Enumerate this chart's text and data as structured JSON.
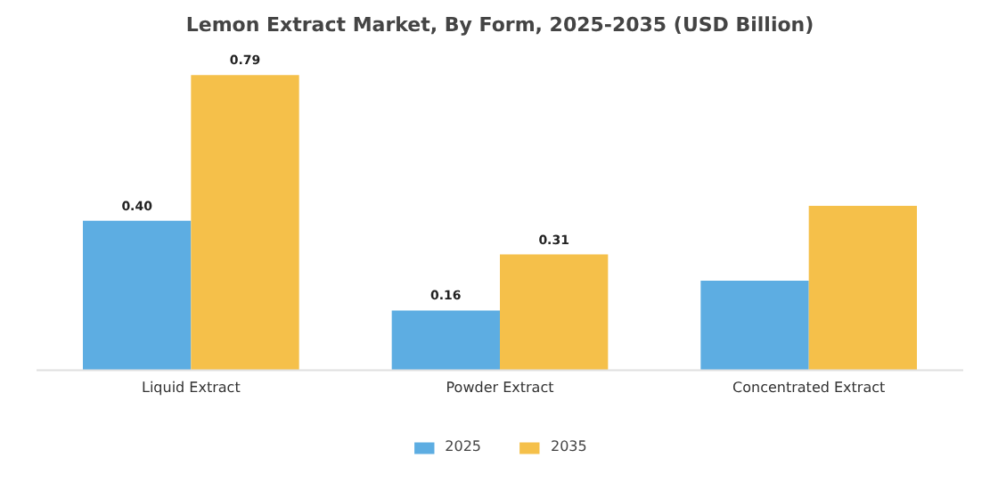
{
  "chart_data": {
    "type": "bar",
    "title": "Lemon Extract Market, By Form, 2025-2035 (USD Billion)",
    "categories": [
      "Liquid Extract",
      "Powder Extract",
      "Concentrated Extract"
    ],
    "series": [
      {
        "name": "2025",
        "color": "#5dade2",
        "values": [
          0.4,
          0.16,
          0.24
        ],
        "value_labels": [
          "0.40",
          "0.16",
          null
        ]
      },
      {
        "name": "2035",
        "color": "#f5c04a",
        "values": [
          0.79,
          0.31,
          0.44
        ],
        "value_labels": [
          "0.79",
          "0.31",
          null
        ]
      }
    ],
    "legend": "bottom"
  }
}
